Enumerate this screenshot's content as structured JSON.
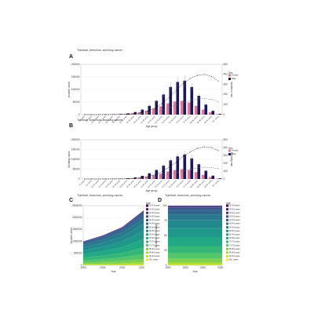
{
  "chart_data": [
    {
      "type": "bar",
      "panel": "A",
      "title": "Tracheal, bronchus, and lung cancer",
      "x_label": "Age group",
      "y_label": "Incident cases",
      "y2_label": "Incidence rate",
      "legend_title": "Sex",
      "categories": [
        "<5 years",
        "5-9 years",
        "10-14 years",
        "15-19 years",
        "20-24 years",
        "25-29 years",
        "30-34 years",
        "35-39 years",
        "40-44 years",
        "45-49 years",
        "50-54 years",
        "55-59 years",
        "60-64 years",
        "65-69 years",
        "70-74 years",
        "75-79 years",
        "80-84 years",
        "85-89 years",
        "90-94 years",
        "95+ years"
      ],
      "ylim": [
        0,
        200000
      ],
      "yticks": [
        0,
        50000,
        100000,
        150000,
        200000
      ],
      "y2lim": [
        0,
        500
      ],
      "y2ticks": [
        0,
        100,
        200,
        300,
        400,
        500
      ],
      "series": [
        {
          "name": "Female",
          "color": "#e07b95",
          "values": [
            0,
            0,
            150,
            400,
            900,
            1800,
            3500,
            6000,
            10000,
            16000,
            24000,
            33000,
            45000,
            52000,
            55000,
            48000,
            35000,
            20000,
            9000,
            2000
          ]
        },
        {
          "name": "Male",
          "color": "#1c1856",
          "values": [
            0,
            0,
            200,
            500,
            1200,
            2500,
            5000,
            10000,
            20000,
            35000,
            55000,
            80000,
            110000,
            130000,
            135000,
            110000,
            75000,
            40000,
            15000,
            3000
          ],
          "errors": [
            0,
            0,
            30,
            80,
            180,
            380,
            750,
            1500,
            3000,
            5000,
            8000,
            12000,
            17000,
            20000,
            20000,
            17000,
            11000,
            6000,
            2300,
            500
          ]
        },
        {
          "axis": "y2",
          "color": "#777777",
          "values": [
            0,
            0,
            0.1,
            0.3,
            0.8,
            1.5,
            3,
            5,
            9,
            16,
            28,
            45,
            70,
            95,
            120,
            140,
            155,
            160,
            150,
            130
          ]
        },
        {
          "axis": "y2",
          "color": "#111111",
          "values": [
            0,
            0,
            0.1,
            0.3,
            1,
            2,
            4,
            8,
            18,
            35,
            65,
            110,
            170,
            240,
            310,
            360,
            390,
            400,
            380,
            330
          ]
        }
      ]
    },
    {
      "type": "bar",
      "panel": "B",
      "title": "Tracheal, bronchus, and lung cancer",
      "x_label": "Age group",
      "y_label": "Mortality cases",
      "y2_label": "Mortality rate",
      "legend_title": "Sex",
      "categories": [
        "<5 years",
        "5-9 years",
        "10-14 years",
        "15-19 years",
        "20-24 years",
        "25-29 years",
        "30-34 years",
        "35-39 years",
        "40-44 years",
        "45-49 years",
        "50-54 years",
        "55-59 years",
        "60-64 years",
        "65-69 years",
        "70-74 years",
        "75-79 years",
        "80-84 years",
        "85-89 years",
        "90-94 years",
        "95+ years"
      ],
      "ylim": [
        0,
        200000
      ],
      "yticks": [
        0,
        50000,
        100000,
        150000,
        200000
      ],
      "y2lim": [
        0,
        500
      ],
      "y2ticks": [
        0,
        100,
        200,
        300,
        400,
        500
      ],
      "series": [
        {
          "name": "Female",
          "color": "#e07b95",
          "values": [
            0,
            0,
            80,
            200,
            500,
            1100,
            2300,
            4300,
            7500,
            12000,
            19000,
            27000,
            38000,
            45000,
            50000,
            45000,
            35000,
            21000,
            10000,
            2500
          ]
        },
        {
          "name": "Male",
          "color": "#1c1856",
          "values": [
            0,
            0,
            100,
            300,
            800,
            1800,
            3800,
            8000,
            16000,
            29000,
            46000,
            68000,
            95000,
            115000,
            125000,
            105000,
            75000,
            42000,
            17000,
            3500
          ],
          "errors": [
            0,
            0,
            20,
            50,
            120,
            270,
            570,
            1200,
            2400,
            4400,
            7000,
            10000,
            14000,
            17000,
            19000,
            16000,
            11000,
            6300,
            2500,
            500
          ]
        },
        {
          "axis": "y2",
          "color": "#777777",
          "values": [
            0,
            0,
            0.05,
            0.2,
            0.5,
            1,
            2.3,
            4,
            7,
            12,
            22,
            37,
            58,
            82,
            105,
            125,
            140,
            150,
            145,
            130
          ]
        },
        {
          "axis": "y2",
          "color": "#111111",
          "values": [
            0,
            0,
            0.05,
            0.2,
            0.7,
            1.5,
            3,
            7,
            15,
            30,
            55,
            95,
            150,
            215,
            290,
            345,
            390,
            410,
            400,
            360
          ]
        }
      ]
    },
    {
      "type": "area",
      "panel": "C",
      "title": "Tracheal, bronchus, and lung cancer",
      "x_label": "Year",
      "y_label": "Incident cases",
      "legend_title": "Age",
      "x": [
        1990,
        2000,
        2010,
        2021
      ],
      "xlim": [
        1990,
        2021
      ],
      "xticks": [
        1990,
        2000,
        2010,
        2020
      ],
      "ylim": [
        0,
        2500000
      ],
      "yticks": [
        0,
        500000,
        1000000,
        1500000,
        2000000,
        2500000
      ],
      "series": [
        {
          "name": "20-24 years",
          "color": "#440154",
          "values": [
            2000,
            2500,
            3200,
            4600
          ]
        },
        {
          "name": "25-29 years",
          "color": "#481a6c",
          "values": [
            5000,
            6250,
            8000,
            11500
          ]
        },
        {
          "name": "30-34 years",
          "color": "#472f7d",
          "values": [
            10000,
            12500,
            16000,
            23000
          ]
        },
        {
          "name": "35-39 years",
          "color": "#414487",
          "values": [
            20000,
            25000,
            32000,
            46000
          ]
        },
        {
          "name": "40-44 years",
          "color": "#39568c",
          "values": [
            40000,
            50000,
            64000,
            92000
          ]
        },
        {
          "name": "45-49 years",
          "color": "#31688e",
          "values": [
            70000,
            87500,
            112000,
            161000
          ]
        },
        {
          "name": "50-54 years",
          "color": "#2a788e",
          "values": [
            100000,
            125000,
            160000,
            230000
          ]
        },
        {
          "name": "55-59 years",
          "color": "#23888e",
          "values": [
            130000,
            162500,
            208000,
            299000
          ]
        },
        {
          "name": "60-64 years",
          "color": "#1f988b",
          "values": [
            150000,
            187500,
            240000,
            345000
          ]
        },
        {
          "name": "65-69 years",
          "color": "#22a884",
          "values": [
            150000,
            187500,
            240000,
            345000
          ]
        },
        {
          "name": "70-74 years",
          "color": "#35b779",
          "values": [
            120000,
            150000,
            192000,
            276000
          ]
        },
        {
          "name": "75-79 years",
          "color": "#54c568",
          "values": [
            90000,
            112500,
            144000,
            207000
          ]
        },
        {
          "name": "80-84 years",
          "color": "#7ad151",
          "values": [
            60000,
            75000,
            96000,
            138000
          ]
        },
        {
          "name": "85-89 years",
          "color": "#a5db36",
          "values": [
            35000,
            43750,
            56000,
            80500
          ]
        },
        {
          "name": "90-94 years",
          "color": "#d2e21b",
          "values": [
            15000,
            18750,
            24000,
            34500
          ]
        },
        {
          "name": "95+ years",
          "color": "#fde725",
          "values": [
            5000,
            6250,
            8000,
            11500
          ]
        }
      ]
    },
    {
      "type": "area",
      "panel": "D",
      "title": "Tracheal, bronchus, and lung cancer",
      "x_label": "Year",
      "y_label": "Incidence percentage",
      "legend_title": "Age",
      "x": [
        1990,
        2000,
        2010,
        2021
      ],
      "xlim": [
        1990,
        2021
      ],
      "xticks": [
        1990,
        2000,
        2010,
        2020
      ],
      "ylim": [
        0,
        100
      ],
      "yticks": [
        0,
        25,
        50,
        75,
        100
      ],
      "series": [
        {
          "name": "20-24 years",
          "color": "#440154",
          "values": [
            0.2,
            0.2,
            0.2,
            0.2
          ]
        },
        {
          "name": "25-29 years",
          "color": "#481a6c",
          "values": [
            0.5,
            0.5,
            0.5,
            0.5
          ]
        },
        {
          "name": "30-34 years",
          "color": "#472f7d",
          "values": [
            1,
            1,
            1,
            1
          ]
        },
        {
          "name": "35-39 years",
          "color": "#414487",
          "values": [
            2,
            2,
            2,
            2
          ]
        },
        {
          "name": "40-44 years",
          "color": "#39568c",
          "values": [
            4,
            4,
            4,
            4
          ]
        },
        {
          "name": "45-49 years",
          "color": "#31688e",
          "values": [
            7,
            7,
            7,
            7
          ]
        },
        {
          "name": "50-54 years",
          "color": "#2a788e",
          "values": [
            10,
            10,
            10,
            10
          ]
        },
        {
          "name": "55-59 years",
          "color": "#23888e",
          "values": [
            13,
            13,
            13,
            13
          ]
        },
        {
          "name": "60-64 years",
          "color": "#1f988b",
          "values": [
            15,
            15,
            15,
            15
          ]
        },
        {
          "name": "65-69 years",
          "color": "#22a884",
          "values": [
            15,
            15,
            15,
            15
          ]
        },
        {
          "name": "70-74 years",
          "color": "#35b779",
          "values": [
            12,
            12,
            12,
            12
          ]
        },
        {
          "name": "75-79 years",
          "color": "#54c568",
          "values": [
            9,
            9,
            9,
            9
          ]
        },
        {
          "name": "80-84 years",
          "color": "#7ad151",
          "values": [
            6,
            6,
            6,
            6
          ]
        },
        {
          "name": "85-89 years",
          "color": "#a5db36",
          "values": [
            3.5,
            3.5,
            3.5,
            3.5
          ]
        },
        {
          "name": "90-94 years",
          "color": "#d2e21b",
          "values": [
            1.5,
            1.5,
            1.5,
            1.5
          ]
        },
        {
          "name": "95+ years",
          "color": "#fde725",
          "values": [
            0.3,
            0.3,
            0.3,
            0.3
          ]
        }
      ]
    }
  ]
}
